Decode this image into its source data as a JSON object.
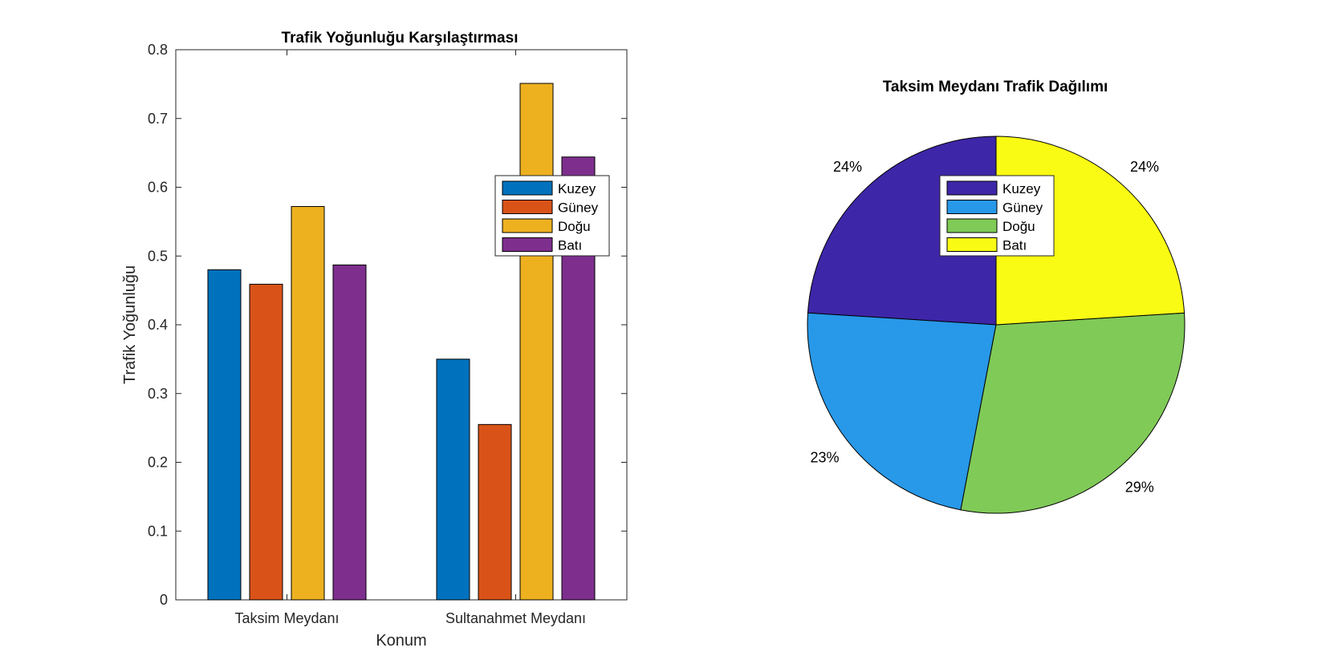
{
  "chart_data": [
    {
      "type": "bar",
      "title": "Trafik Yoğunluğu Karşılaştırması",
      "xlabel": "Konum",
      "ylabel": "Trafik Yoğunluğu",
      "ylim": [
        0,
        0.8
      ],
      "yticks": [
        "0",
        "0.1",
        "0.2",
        "0.3",
        "0.4",
        "0.5",
        "0.6",
        "0.7",
        "0.8"
      ],
      "categories": [
        "Taksim Meydanı",
        "Sultanahmet Meydanı"
      ],
      "series": [
        {
          "name": "Kuzey",
          "color": "#0072BD",
          "values": [
            0.48,
            0.35
          ]
        },
        {
          "name": "Güney",
          "color": "#D95319",
          "values": [
            0.459,
            0.255
          ]
        },
        {
          "name": "Doğu",
          "color": "#EDB120",
          "values": [
            0.572,
            0.751
          ]
        },
        {
          "name": "Batı",
          "color": "#7E2F8E",
          "values": [
            0.487,
            0.644
          ]
        }
      ],
      "legend": "top-right",
      "grid": false
    },
    {
      "type": "pie",
      "title": "Taksim Meydanı Trafik Dağılımı",
      "slices": [
        {
          "name": "Kuzey",
          "color": "#3E26A8",
          "value": 24,
          "label": "24%"
        },
        {
          "name": "Güney",
          "color": "#2898E8",
          "value": 23,
          "label": "23%"
        },
        {
          "name": "Doğu",
          "color": "#80CA58",
          "value": 29,
          "label": "29%"
        },
        {
          "name": "Batı",
          "color": "#F9FB15",
          "value": 24,
          "label": "24%"
        }
      ],
      "legend": "top-center"
    }
  ]
}
